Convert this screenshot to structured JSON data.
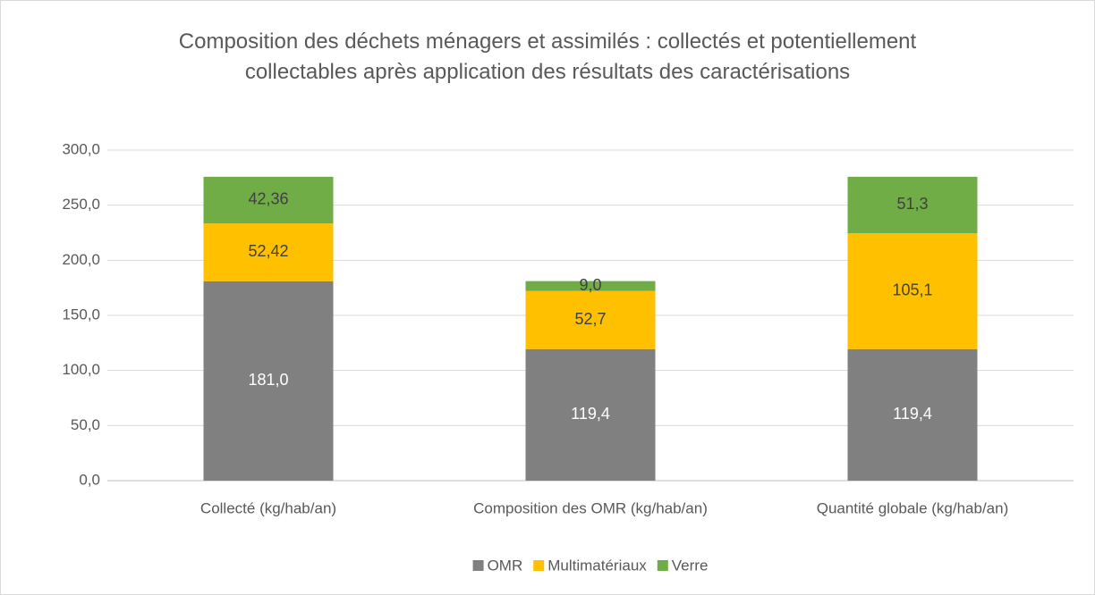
{
  "chart_data": {
    "type": "stacked_bar",
    "title": "Composition des déchets ménagers et assimilés : collectés et potentiellement collectables après application des résultats des caractérisations",
    "categories": [
      "Collecté (kg/hab/an)",
      "Composition des OMR (kg/hab/an)",
      "Quantité globale (kg/hab/an)"
    ],
    "series": [
      {
        "name": "OMR",
        "color": "#808080",
        "values": [
          181.0,
          119.4,
          119.4
        ],
        "value_labels": [
          "181,0",
          "119,4",
          "119,4"
        ]
      },
      {
        "name": "Multimatériaux",
        "color": "#ffc000",
        "values": [
          52.42,
          52.7,
          105.1
        ],
        "value_labels": [
          "52,42",
          "52,7",
          "105,1"
        ]
      },
      {
        "name": "Verre",
        "color": "#70ad47",
        "values": [
          42.36,
          9.0,
          51.3
        ],
        "value_labels": [
          "42,36",
          "9,0",
          "51,3"
        ]
      }
    ],
    "ylim": [
      0,
      300
    ],
    "yticks": [
      {
        "value": 0,
        "label": "0,0"
      },
      {
        "value": 50,
        "label": "50,0"
      },
      {
        "value": 100,
        "label": "100,0"
      },
      {
        "value": 150,
        "label": "150,0"
      },
      {
        "value": 200,
        "label": "200,0"
      },
      {
        "value": 250,
        "label": "250,0"
      },
      {
        "value": 300,
        "label": "300,0"
      }
    ],
    "grid": true,
    "legend": "bottom"
  }
}
